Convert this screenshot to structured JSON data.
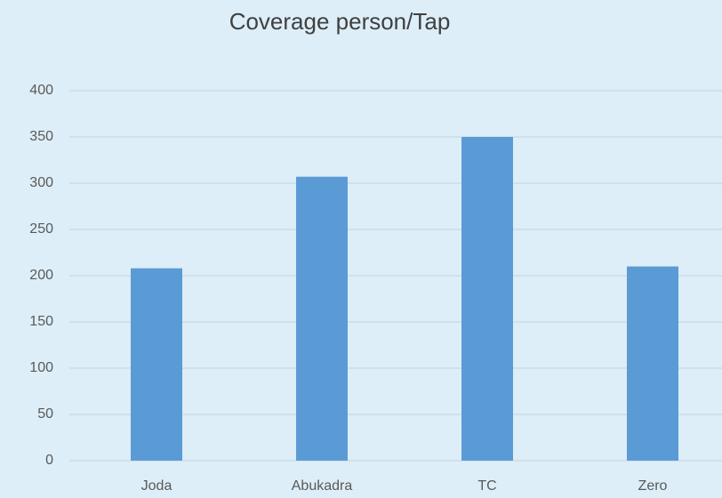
{
  "chart_data": {
    "type": "bar",
    "title": "Coverage person/Tap",
    "categories": [
      "Joda",
      "Abukadra",
      "TC",
      "Zero"
    ],
    "values": [
      208,
      307,
      350,
      210
    ],
    "color": "#5b9bd5",
    "ylim": [
      0,
      400
    ],
    "yticks": [
      0,
      50,
      100,
      150,
      200,
      250,
      300,
      350,
      400
    ],
    "grid": true
  }
}
